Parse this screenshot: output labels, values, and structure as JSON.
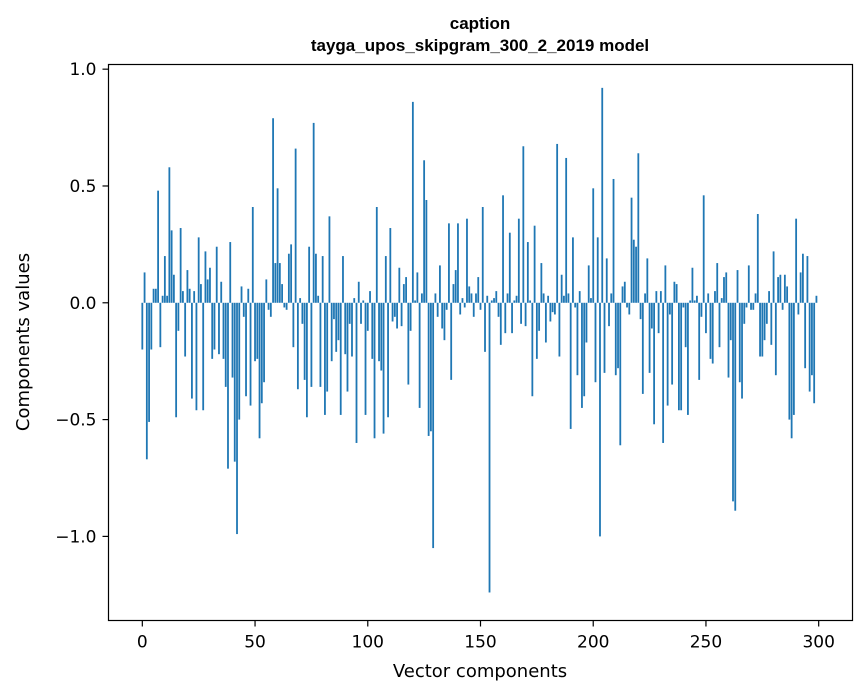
{
  "chart_data": {
    "type": "bar",
    "title": "caption",
    "subtitle": "tayga_upos_skipgram_300_2_2019 model",
    "xlabel": "Vector components",
    "ylabel": "Components values",
    "xlim": [
      -15,
      315
    ],
    "ylim": [
      -1.36,
      1.02
    ],
    "xticks": [
      0,
      50,
      100,
      150,
      200,
      250,
      300
    ],
    "xtick_labels": [
      "0",
      "50",
      "100",
      "150",
      "200",
      "250",
      "300"
    ],
    "yticks": [
      -1.0,
      -0.5,
      0.0,
      0.5,
      1.0
    ],
    "ytick_labels": [
      "−1.0",
      "−0.5",
      "0.0",
      "0.5",
      "1.0"
    ],
    "bar_color": "#1f77b4",
    "values": [
      -0.2,
      0.13,
      -0.67,
      -0.51,
      -0.2,
      0.06,
      0.06,
      0.48,
      -0.19,
      0.03,
      0.2,
      0.03,
      0.58,
      0.31,
      0.12,
      -0.49,
      -0.12,
      0.32,
      0.05,
      -0.23,
      0.14,
      0.06,
      -0.41,
      0.05,
      -0.46,
      0.28,
      0.08,
      -0.46,
      0.22,
      0.1,
      0.15,
      -0.24,
      -0.2,
      0.24,
      -0.22,
      0.09,
      -0.24,
      -0.36,
      -0.71,
      0.26,
      -0.32,
      -0.68,
      -0.99,
      -0.5,
      0.07,
      -0.06,
      -0.4,
      0.06,
      -0.44,
      0.41,
      -0.25,
      -0.24,
      -0.58,
      -0.43,
      -0.34,
      0.1,
      -0.03,
      -0.06,
      0.79,
      0.17,
      0.49,
      0.17,
      0.08,
      -0.02,
      -0.03,
      0.21,
      0.25,
      -0.19,
      0.66,
      -0.37,
      0.02,
      -0.09,
      -0.33,
      -0.49,
      0.24,
      -0.36,
      0.77,
      0.21,
      0.03,
      -0.36,
      0.2,
      -0.48,
      -0.38,
      0.37,
      -0.25,
      -0.07,
      -0.21,
      -0.16,
      -0.48,
      0.2,
      -0.22,
      -0.38,
      -0.09,
      -0.23,
      0.02,
      -0.6,
      0.09,
      -0.09,
      0.01,
      -0.48,
      -0.12,
      0.05,
      -0.24,
      -0.58,
      0.41,
      -0.25,
      -0.29,
      -0.56,
      0.2,
      -0.49,
      0.32,
      -0.08,
      -0.06,
      -0.11,
      0.15,
      -0.1,
      0.08,
      0.11,
      -0.35,
      -0.12,
      0.86,
      0.01,
      0.13,
      -0.45,
      0.04,
      0.61,
      0.44,
      -0.57,
      -0.55,
      -1.05,
      0.04,
      -0.06,
      0.16,
      -0.11,
      -0.16,
      -0.03,
      0.34,
      -0.33,
      0.08,
      0.14,
      0.34,
      -0.05,
      0.02,
      -0.02,
      0.36,
      0.07,
      0.04,
      -0.06,
      0.04,
      0.11,
      -0.03,
      0.41,
      -0.21,
      0.03,
      -1.24,
      0.01,
      0.02,
      0.05,
      -0.06,
      -0.18,
      0.46,
      -0.13,
      0.04,
      0.3,
      -0.13,
      0.01,
      0.03,
      0.36,
      -0.09,
      0.67,
      -0.1,
      0.26,
      0.01,
      -0.4,
      0.33,
      -0.24,
      -0.12,
      0.17,
      0.04,
      -0.17,
      0.03,
      -0.08,
      -0.04,
      -0.05,
      0.68,
      -0.23,
      0.12,
      0.03,
      0.62,
      0.04,
      -0.54,
      0.28,
      -0.02,
      -0.31,
      0.05,
      -0.45,
      -0.4,
      -0.17,
      0.16,
      0.02,
      0.49,
      -0.34,
      0.28,
      -1.0,
      0.92,
      -0.3,
      0.19,
      -0.1,
      0.04,
      0.53,
      -0.31,
      -0.28,
      -0.61,
      0.07,
      0.09,
      -0.02,
      -0.05,
      0.45,
      0.27,
      0.24,
      0.64,
      -0.07,
      -0.39,
      0.04,
      0.19,
      -0.3,
      -0.11,
      -0.52,
      0.05,
      -0.13,
      0.05,
      -0.6,
      0.16,
      -0.44,
      -0.05,
      -0.35,
      0.09,
      0.08,
      -0.46,
      -0.46,
      -0.02,
      -0.19,
      -0.48,
      0.01,
      0.15,
      0.01,
      0.03,
      -0.33,
      -0.06,
      0.46,
      -0.13,
      0.04,
      -0.24,
      -0.26,
      0.05,
      0.17,
      -0.19,
      0.02,
      0.11,
      0.13,
      -0.32,
      -0.16,
      -0.85,
      -0.89,
      0.14,
      -0.34,
      -0.41,
      -0.09,
      -0.02,
      0.16,
      -0.03,
      -0.03,
      0.04,
      0.38,
      -0.23,
      -0.23,
      -0.16,
      -0.09,
      0.05,
      -0.18,
      0.22,
      -0.31,
      0.11,
      0.12,
      -0.03,
      0.12,
      0.07,
      -0.5,
      -0.58,
      -0.48,
      0.36,
      -0.05,
      0.13,
      0.21,
      -0.28,
      0.2,
      -0.38,
      -0.31,
      -0.43,
      0.03
    ]
  }
}
